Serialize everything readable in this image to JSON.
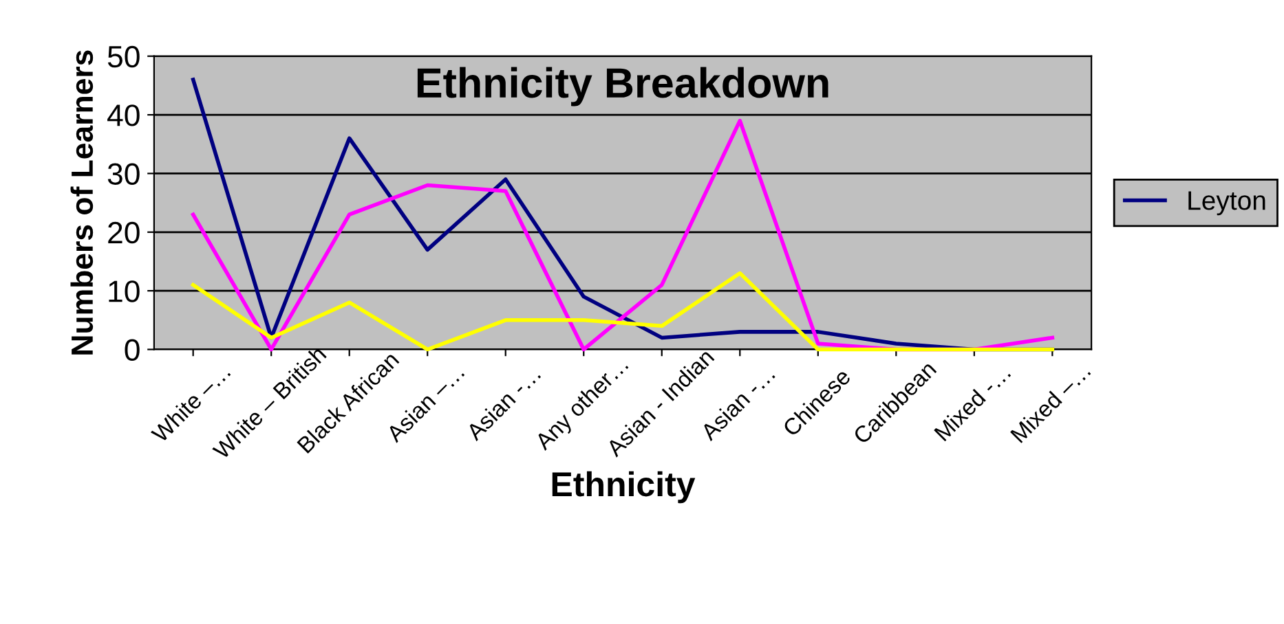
{
  "chart_data": {
    "type": "line",
    "title": "Ethnicity Breakdown",
    "xlabel": "Ethnicity",
    "ylabel": "Numbers of Learners",
    "categories": [
      "White –…",
      "White – British",
      "Black African",
      "Asian –…",
      "Asian -…",
      "Any other…",
      "Asian - Indian",
      "Asian -…",
      "Chinese",
      "Caribbean",
      "Mixed -…",
      "Mixed –…"
    ],
    "series": [
      {
        "name": "Leyton",
        "color": "#000080",
        "values": [
          46,
          2,
          36,
          17,
          29,
          9,
          2,
          3,
          3,
          1,
          0,
          0
        ]
      },
      {
        "color": "#ff00ff",
        "values": [
          23,
          0,
          23,
          28,
          27,
          0,
          11,
          39,
          1,
          0,
          0,
          2
        ]
      },
      {
        "color": "#ffff00",
        "values": [
          11,
          2,
          8,
          0,
          5,
          5,
          4,
          13,
          0,
          0,
          0,
          0
        ]
      }
    ],
    "ylim": [
      0,
      50
    ],
    "yticks": [
      0,
      10,
      20,
      30,
      40,
      50
    ],
    "grid": "y",
    "legend": "right",
    "marker": "none",
    "line_style": "solid"
  }
}
